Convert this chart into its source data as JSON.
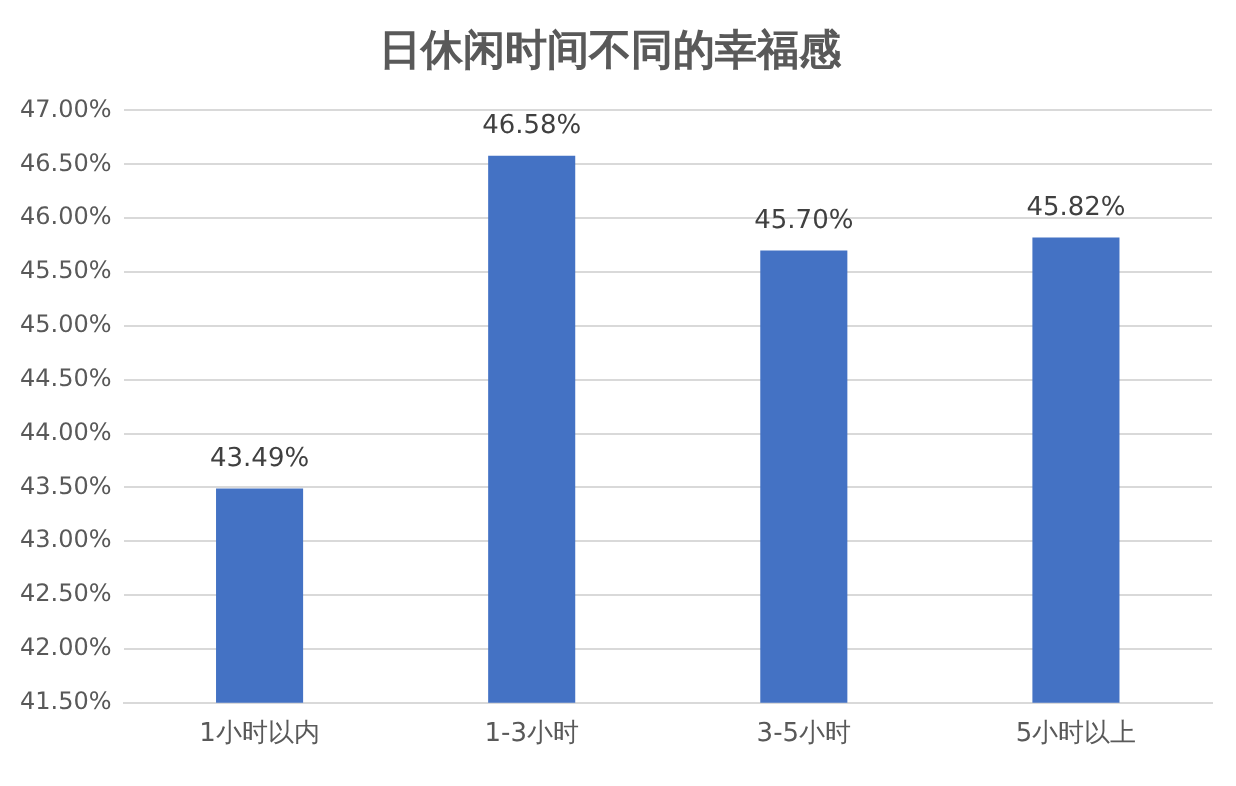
{
  "chart_data": {
    "type": "bar",
    "title": "日休闲时间不同的幸福感",
    "categories": [
      "1小时以内",
      "1-3小时",
      "3-5小时",
      "5小时以上"
    ],
    "values": [
      43.49,
      46.58,
      45.7,
      45.82
    ],
    "value_labels": [
      "43.49%",
      "46.58%",
      "45.70%",
      "45.82%"
    ],
    "color": "#4472c4",
    "ylim": [
      41.5,
      47
    ],
    "yticks": [
      {
        "value": 41.5,
        "label": "41.50%"
      },
      {
        "value": 42,
        "label": "42.00%"
      },
      {
        "value": 42.5,
        "label": "42.50%"
      },
      {
        "value": 43,
        "label": "43.00%"
      },
      {
        "value": 43.5,
        "label": "43.50%"
      },
      {
        "value": 44,
        "label": "44.00%"
      },
      {
        "value": 44.5,
        "label": "44.50%"
      },
      {
        "value": 45,
        "label": "45.00%"
      },
      {
        "value": 45.5,
        "label": "45.50%"
      },
      {
        "value": 46,
        "label": "46.00%"
      },
      {
        "value": 46.5,
        "label": "46.50%"
      },
      {
        "value": 47,
        "label": "47.00%"
      }
    ],
    "grid": "y"
  }
}
